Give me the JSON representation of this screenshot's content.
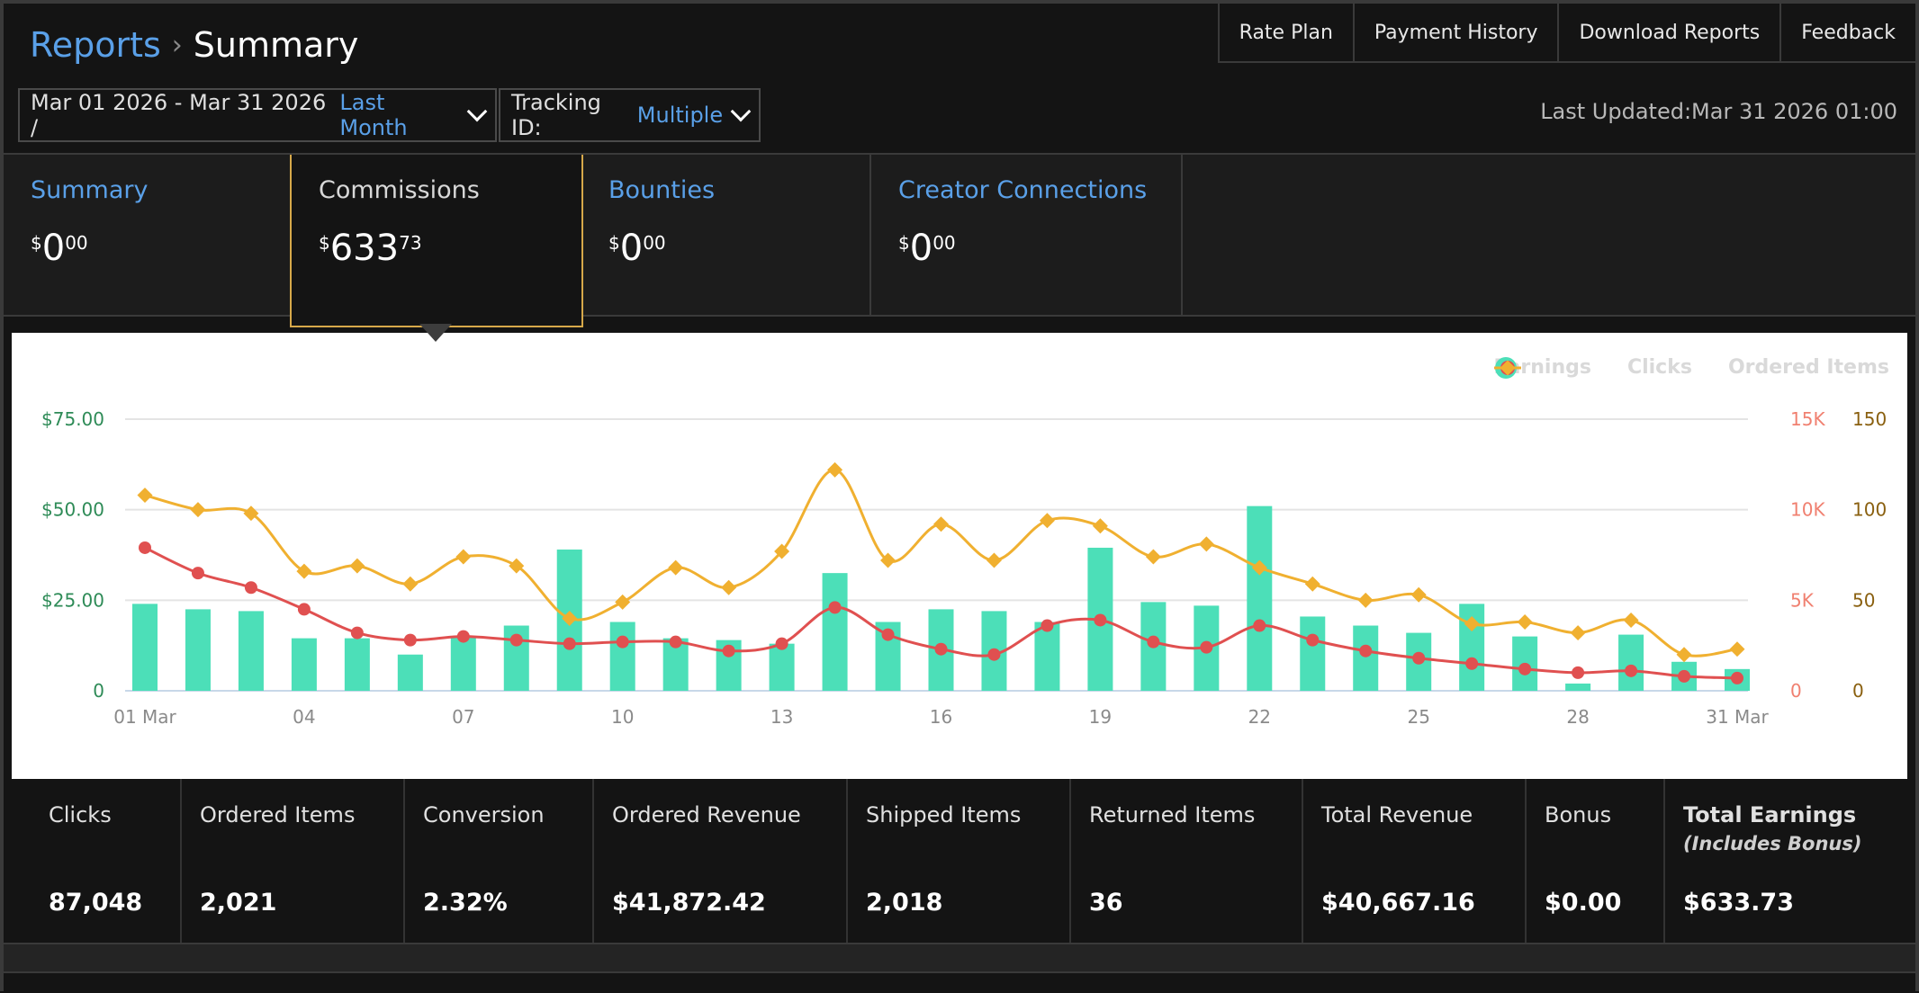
{
  "breadcrumb": {
    "parent": "Reports",
    "separator": "›",
    "current": "Summary"
  },
  "top_nav": [
    "Rate Plan",
    "Payment History",
    "Download Reports",
    "Feedback"
  ],
  "filters": {
    "date_range": "Mar 01 2026 - Mar 31 2026 /",
    "date_preset": "Last Month",
    "tracking_label": "Tracking ID:",
    "tracking_value": "Multiple"
  },
  "last_updated": "Last Updated:Mar 31 2026 01:00",
  "tabs": [
    {
      "name": "Summary",
      "currency": "$",
      "whole": "0",
      "cents": "00",
      "active": false
    },
    {
      "name": "Commissions",
      "currency": "$",
      "whole": "633",
      "cents": "73",
      "active": true
    },
    {
      "name": "Bounties",
      "currency": "$",
      "whole": "0",
      "cents": "00",
      "active": false
    },
    {
      "name": "Creator Connections",
      "currency": "$",
      "whole": "0",
      "cents": "00",
      "active": false
    }
  ],
  "legend": {
    "earnings": "Earnings",
    "clicks": "Clicks",
    "ordered": "Ordered Items"
  },
  "chart_data": {
    "type": "bar",
    "title": "",
    "days": [
      1,
      2,
      3,
      4,
      5,
      6,
      7,
      8,
      9,
      10,
      11,
      12,
      13,
      14,
      15,
      16,
      17,
      18,
      19,
      20,
      21,
      22,
      23,
      24,
      25,
      26,
      27,
      28,
      29,
      30,
      31
    ],
    "x_tick_labels": [
      {
        "day": 1,
        "label": "01 Mar"
      },
      {
        "day": 4,
        "label": "04"
      },
      {
        "day": 7,
        "label": "07"
      },
      {
        "day": 10,
        "label": "10"
      },
      {
        "day": 13,
        "label": "13"
      },
      {
        "day": 16,
        "label": "16"
      },
      {
        "day": 19,
        "label": "19"
      },
      {
        "day": 22,
        "label": "22"
      },
      {
        "day": 25,
        "label": "25"
      },
      {
        "day": 28,
        "label": "28"
      },
      {
        "day": 31,
        "label": "31 Mar"
      }
    ],
    "y_left": {
      "ticks": [
        0,
        25,
        50,
        75
      ],
      "labels": [
        "0",
        "$25.00",
        "$50.00",
        "$75.00"
      ],
      "range": [
        0,
        75
      ],
      "color": "#2e8b57"
    },
    "y_right_clicks": {
      "ticks": [
        0,
        5000,
        10000,
        15000
      ],
      "labels": [
        "0",
        "5K",
        "10K",
        "15K"
      ],
      "range": [
        0,
        15000
      ],
      "color": "#f08070"
    },
    "y_right_items": {
      "ticks": [
        0,
        50,
        100,
        150
      ],
      "labels": [
        "0",
        "50",
        "100",
        "150"
      ],
      "range": [
        0,
        150
      ],
      "color": "#8a6010"
    },
    "series": [
      {
        "name": "Earnings",
        "type": "bar",
        "axis": "left",
        "color": "#4cdfb8",
        "values": [
          24,
          22.5,
          22,
          14.5,
          14.5,
          10,
          15,
          18,
          39,
          19,
          14.5,
          14,
          13,
          32.5,
          19,
          22.5,
          22,
          19,
          39.5,
          24.5,
          23.5,
          51,
          20.5,
          18,
          16,
          24,
          15,
          2,
          15.5,
          8,
          6
        ]
      },
      {
        "name": "Clicks",
        "type": "line",
        "axis": "right_clicks",
        "color": "#e05050",
        "values": [
          7900,
          6500,
          5700,
          4500,
          3200,
          2800,
          3000,
          2800,
          2600,
          2700,
          2700,
          2200,
          2600,
          4600,
          3100,
          2300,
          2000,
          3600,
          3900,
          2700,
          2400,
          3600,
          2800,
          2200,
          1800,
          1500,
          1200,
          1000,
          1100,
          800,
          700
        ]
      },
      {
        "name": "Ordered Items",
        "type": "line",
        "axis": "right_items",
        "color": "#f0b030",
        "values": [
          108,
          100,
          98,
          66,
          69,
          59,
          74,
          69,
          40,
          49,
          68,
          57,
          77,
          122,
          72,
          92,
          72,
          94,
          91,
          74,
          81,
          68,
          59,
          50,
          53,
          37,
          38,
          32,
          39,
          20,
          23
        ]
      }
    ],
    "grid": true,
    "legend_position": "top-right"
  },
  "stats": [
    {
      "label": "Clicks",
      "value": "87,048"
    },
    {
      "label": "Ordered Items",
      "value": "2,021"
    },
    {
      "label": "Conversion",
      "value": "2.32%"
    },
    {
      "label": "Ordered Revenue",
      "value": "$41,872.42"
    },
    {
      "label": "Shipped Items",
      "value": "2,018"
    },
    {
      "label": "Returned Items",
      "value": "36"
    },
    {
      "label": "Total Revenue",
      "value": "$40,667.16"
    },
    {
      "label": "Bonus",
      "value": "$0.00"
    },
    {
      "label": "Total Earnings",
      "sub": "(Includes Bonus)",
      "value": "$633.73",
      "bold": true
    }
  ]
}
